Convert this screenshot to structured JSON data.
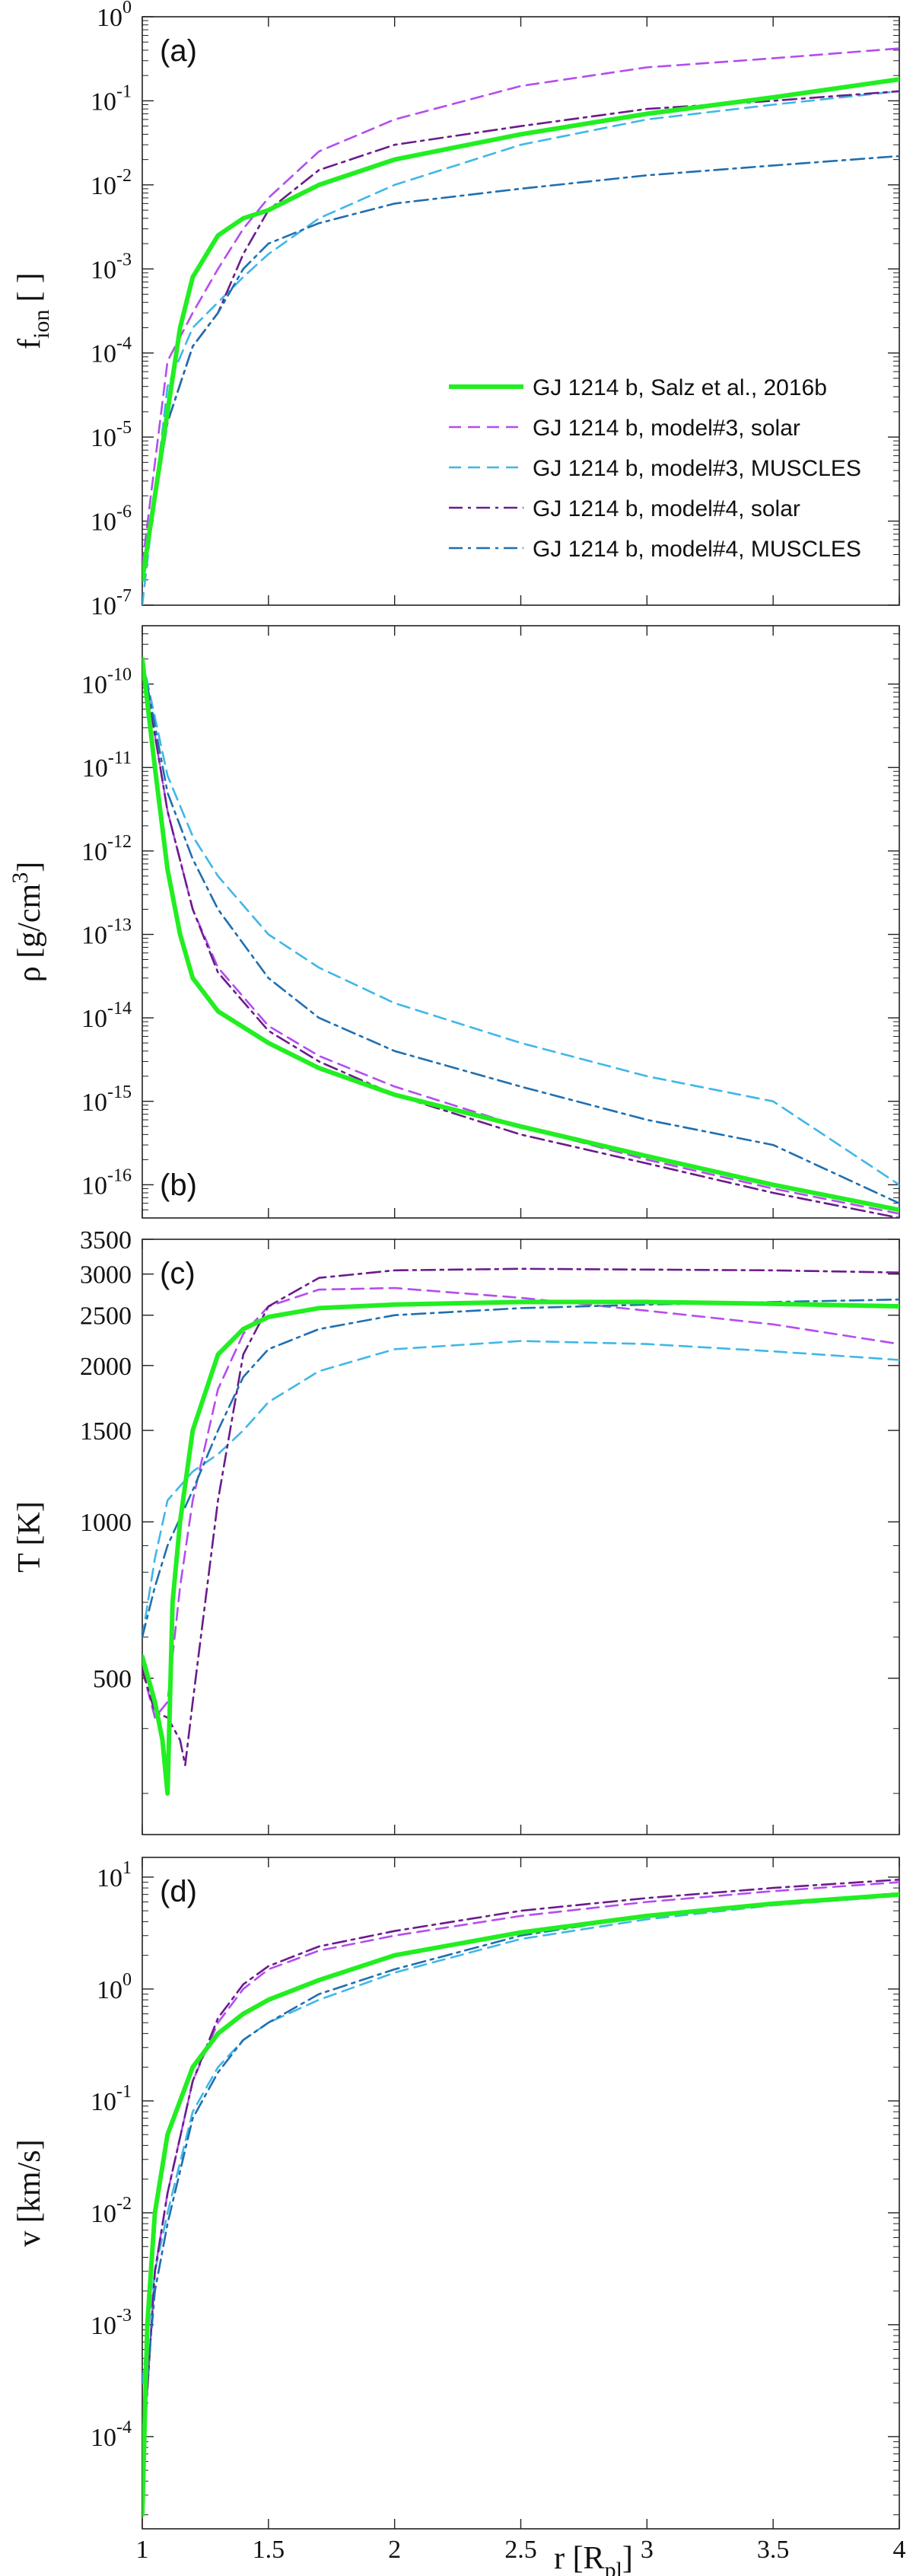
{
  "figure": {
    "xlabel": "r [R",
    "xlabel_sub": "pl",
    "xlabel_close": "]"
  },
  "colors": {
    "salz": "#22ee22",
    "m3solar": "#b44cf0",
    "m3muscles": "#3fb7e8",
    "m4solar": "#6a1c8a",
    "m4muscles": "#1f6fb0"
  },
  "legend": [
    {
      "key": "salz",
      "label": "GJ 1214 b, Salz et al., 2016b"
    },
    {
      "key": "m3solar",
      "label": "GJ 1214 b, model#3, solar"
    },
    {
      "key": "m3muscles",
      "label": "GJ 1214 b, model#3, MUSCLES"
    },
    {
      "key": "m4solar",
      "label": "GJ 1214 b, model#4, solar"
    },
    {
      "key": "m4muscles",
      "label": "GJ 1214 b, model#4, MUSCLES"
    }
  ],
  "chart_data": [
    {
      "type": "line",
      "panel_label": "(a)",
      "ylabel": "f",
      "ylabel_sub": "ion",
      "ylabel_unit": "[ ]",
      "yscale": "log",
      "ylim": [
        1e-07,
        1
      ],
      "xlim": [
        1,
        4
      ],
      "x_ticks": [
        "1",
        "1.5",
        "2",
        "2.5",
        "3",
        "3.5",
        "4"
      ],
      "y_tick_exponents": [
        "0",
        "-1",
        "-2",
        "-3",
        "-4",
        "-5",
        "-6",
        "-7"
      ],
      "series": [
        {
          "key": "salz",
          "x": [
            1.0,
            1.05,
            1.1,
            1.15,
            1.2,
            1.3,
            1.4,
            1.5,
            1.7,
            2.0,
            2.5,
            3.0,
            3.5,
            4.0
          ],
          "y": [
            2e-07,
            2e-06,
            2e-05,
            0.0002,
            0.0008,
            0.0025,
            0.004,
            0.005,
            0.01,
            0.02,
            0.04,
            0.07,
            0.11,
            0.18
          ]
        },
        {
          "key": "m3solar",
          "x": [
            1.0,
            1.1,
            1.2,
            1.3,
            1.4,
            1.5,
            1.7,
            2.0,
            2.5,
            3.0,
            3.5,
            4.0
          ],
          "y": [
            3e-07,
            8e-05,
            0.0003,
            0.001,
            0.003,
            0.007,
            0.025,
            0.06,
            0.15,
            0.25,
            0.32,
            0.42
          ]
        },
        {
          "key": "m3muscles",
          "x": [
            1.0,
            1.1,
            1.2,
            1.3,
            1.4,
            1.5,
            1.7,
            2.0,
            2.5,
            3.0,
            3.5,
            4.0
          ],
          "y": [
            1e-07,
            4e-05,
            0.0002,
            0.0004,
            0.0008,
            0.0015,
            0.004,
            0.01,
            0.03,
            0.06,
            0.09,
            0.13
          ]
        },
        {
          "key": "m4solar",
          "x": [
            1.0,
            1.1,
            1.2,
            1.3,
            1.4,
            1.5,
            1.7,
            2.0,
            2.5,
            3.0,
            3.5,
            4.0
          ],
          "y": [
            2e-07,
            1.5e-05,
            0.00012,
            0.0003,
            0.0015,
            0.005,
            0.015,
            0.03,
            0.05,
            0.08,
            0.1,
            0.13
          ]
        },
        {
          "key": "m4muscles",
          "x": [
            1.0,
            1.1,
            1.2,
            1.3,
            1.4,
            1.5,
            1.7,
            2.0,
            2.5,
            3.0,
            3.5,
            4.0
          ],
          "y": [
            2e-07,
            1.5e-05,
            0.00012,
            0.0003,
            0.001,
            0.002,
            0.0035,
            0.006,
            0.009,
            0.013,
            0.017,
            0.022
          ]
        }
      ]
    },
    {
      "type": "line",
      "panel_label": "(b)",
      "ylabel": "ρ [g/cm",
      "ylabel_sup": "3",
      "ylabel_close": "]",
      "yscale": "log",
      "ylim": [
        4e-17,
        5e-10
      ],
      "xlim": [
        1,
        4
      ],
      "x_ticks": [
        "1",
        "1.5",
        "2",
        "2.5",
        "3",
        "3.5",
        "4"
      ],
      "y_tick_exponents": [
        "-10",
        "-11",
        "-12",
        "-13",
        "-14",
        "-15",
        "-16"
      ],
      "series": [
        {
          "key": "salz",
          "x": [
            1.0,
            1.05,
            1.1,
            1.15,
            1.2,
            1.3,
            1.5,
            1.7,
            2.0,
            2.5,
            3.0,
            3.5,
            4.0
          ],
          "y": [
            2e-10,
            1e-11,
            6e-13,
            1e-13,
            3e-14,
            1.2e-14,
            5e-15,
            2.5e-15,
            1.2e-15,
            5e-16,
            2.2e-16,
            1e-16,
            5e-17
          ]
        },
        {
          "key": "m3solar",
          "x": [
            1.0,
            1.1,
            1.2,
            1.3,
            1.5,
            1.7,
            2.0,
            2.5,
            3.0,
            3.5,
            4.0
          ],
          "y": [
            2e-10,
            3e-12,
            2e-13,
            4e-14,
            8e-15,
            3.5e-15,
            1.5e-15,
            5e-16,
            2e-16,
            9e-17,
            4.5e-17
          ]
        },
        {
          "key": "m3muscles",
          "x": [
            1.0,
            1.1,
            1.2,
            1.3,
            1.5,
            1.7,
            2.0,
            2.5,
            3.0,
            3.5,
            4.0
          ],
          "y": [
            2e-10,
            8e-12,
            1.5e-12,
            5e-13,
            1e-13,
            4e-14,
            1.5e-14,
            5e-15,
            2e-15,
            1e-15,
            1e-16
          ]
        },
        {
          "key": "m4solar",
          "x": [
            1.0,
            1.1,
            1.2,
            1.3,
            1.5,
            1.7,
            2.0,
            2.5,
            3.0,
            3.5,
            4.0
          ],
          "y": [
            2e-10,
            3e-12,
            2e-13,
            3.5e-14,
            7e-15,
            3e-15,
            1.2e-15,
            4e-16,
            1.8e-16,
            8e-17,
            4e-17
          ]
        },
        {
          "key": "m4muscles",
          "x": [
            1.0,
            1.1,
            1.2,
            1.3,
            1.5,
            1.7,
            2.0,
            2.5,
            3.0,
            3.5,
            4.0
          ],
          "y": [
            2e-10,
            5e-12,
            8e-13,
            2e-13,
            3e-14,
            1e-14,
            4e-15,
            1.5e-15,
            6e-16,
            3e-16,
            6e-17
          ]
        }
      ]
    },
    {
      "type": "line",
      "panel_label": "(c)",
      "ylabel": "T [K]",
      "yscale": "log",
      "ylim": [
        250,
        3500
      ],
      "xlim": [
        1,
        4
      ],
      "x_ticks": [
        "1",
        "1.5",
        "2",
        "2.5",
        "3",
        "3.5",
        "4"
      ],
      "y_ticks": [
        "3500",
        "3000",
        "2500",
        "2000",
        "1500",
        "1000",
        "500"
      ],
      "series": [
        {
          "key": "salz",
          "x": [
            1.0,
            1.05,
            1.08,
            1.1,
            1.12,
            1.15,
            1.2,
            1.3,
            1.4,
            1.5,
            1.7,
            2.0,
            2.5,
            3.0,
            3.5,
            4.0
          ],
          "y": [
            550,
            450,
            380,
            300,
            700,
            1000,
            1500,
            2100,
            2350,
            2480,
            2580,
            2620,
            2650,
            2650,
            2630,
            2600
          ]
        },
        {
          "key": "m3solar",
          "x": [
            1.0,
            1.05,
            1.1,
            1.15,
            1.2,
            1.3,
            1.4,
            1.5,
            1.7,
            2.0,
            2.5,
            3.0,
            3.5,
            4.0
          ],
          "y": [
            520,
            420,
            450,
            750,
            1100,
            1800,
            2300,
            2600,
            2800,
            2820,
            2700,
            2550,
            2400,
            2200
          ]
        },
        {
          "key": "m3muscles",
          "x": [
            1.0,
            1.05,
            1.1,
            1.2,
            1.3,
            1.4,
            1.5,
            1.7,
            2.0,
            2.5,
            3.0,
            3.5,
            4.0
          ],
          "y": [
            600,
            850,
            1100,
            1250,
            1350,
            1500,
            1700,
            1950,
            2150,
            2230,
            2200,
            2130,
            2050
          ]
        },
        {
          "key": "m4solar",
          "x": [
            1.0,
            1.05,
            1.1,
            1.15,
            1.17,
            1.2,
            1.3,
            1.4,
            1.5,
            1.7,
            2.0,
            2.5,
            3.0,
            3.5,
            4.0
          ],
          "y": [
            520,
            430,
            420,
            380,
            340,
            450,
            1100,
            2100,
            2600,
            2950,
            3050,
            3070,
            3060,
            3050,
            3020
          ]
        },
        {
          "key": "m4muscles",
          "x": [
            1.0,
            1.05,
            1.1,
            1.2,
            1.3,
            1.4,
            1.5,
            1.7,
            2.0,
            2.5,
            3.0,
            3.5,
            4.0
          ],
          "y": [
            600,
            750,
            900,
            1150,
            1500,
            1900,
            2150,
            2350,
            2500,
            2580,
            2620,
            2650,
            2680
          ]
        }
      ]
    },
    {
      "type": "line",
      "panel_label": "(d)",
      "ylabel": "v [km/s]",
      "yscale": "log",
      "ylim": [
        1.5e-05,
        15
      ],
      "xlim": [
        1,
        4
      ],
      "x_ticks": [
        "1",
        "1.5",
        "2",
        "2.5",
        "3",
        "3.5",
        "4"
      ],
      "y_ticks": [
        "10",
        "10",
        "10",
        "10",
        "10",
        "10"
      ],
      "y_tick_exponents": [
        "1",
        "0",
        "-1",
        "-2",
        "-3",
        "-4"
      ],
      "series": [
        {
          "key": "salz",
          "x": [
            1.0,
            1.02,
            1.05,
            1.1,
            1.15,
            1.2,
            1.3,
            1.4,
            1.5,
            1.7,
            2.0,
            2.5,
            3.0,
            3.5,
            4.0
          ],
          "y": [
            2e-05,
            0.001,
            0.01,
            0.05,
            0.1,
            0.2,
            0.4,
            0.6,
            0.8,
            1.2,
            2.0,
            3.2,
            4.5,
            5.8,
            7.0
          ]
        },
        {
          "key": "m3solar",
          "x": [
            1.0,
            1.05,
            1.1,
            1.2,
            1.3,
            1.4,
            1.5,
            1.7,
            2.0,
            2.5,
            3.0,
            3.5,
            4.0
          ],
          "y": [
            5e-05,
            0.003,
            0.015,
            0.15,
            0.5,
            1.0,
            1.5,
            2.2,
            3.0,
            4.5,
            6.0,
            7.5,
            9.0
          ]
        },
        {
          "key": "m3muscles",
          "x": [
            1.0,
            1.05,
            1.1,
            1.2,
            1.3,
            1.4,
            1.5,
            1.7,
            2.0,
            2.5,
            3.0,
            3.5,
            4.0
          ],
          "y": [
            0.0003,
            0.003,
            0.01,
            0.08,
            0.2,
            0.35,
            0.5,
            0.8,
            1.4,
            2.8,
            4.2,
            5.6,
            6.8
          ]
        },
        {
          "key": "m4solar",
          "x": [
            1.0,
            1.05,
            1.1,
            1.2,
            1.3,
            1.4,
            1.5,
            1.7,
            2.0,
            2.5,
            3.0,
            3.5,
            4.0
          ],
          "y": [
            5e-05,
            0.003,
            0.015,
            0.15,
            0.55,
            1.1,
            1.6,
            2.4,
            3.3,
            5.0,
            6.5,
            8.0,
            9.5
          ]
        },
        {
          "key": "m4muscles",
          "x": [
            1.0,
            1.05,
            1.1,
            1.2,
            1.3,
            1.4,
            1.5,
            1.7,
            2.0,
            2.5,
            3.0,
            3.5,
            4.0
          ],
          "y": [
            0.0001,
            0.002,
            0.008,
            0.07,
            0.18,
            0.35,
            0.5,
            0.9,
            1.5,
            3.0,
            4.5,
            5.8,
            7.2
          ]
        }
      ]
    }
  ]
}
